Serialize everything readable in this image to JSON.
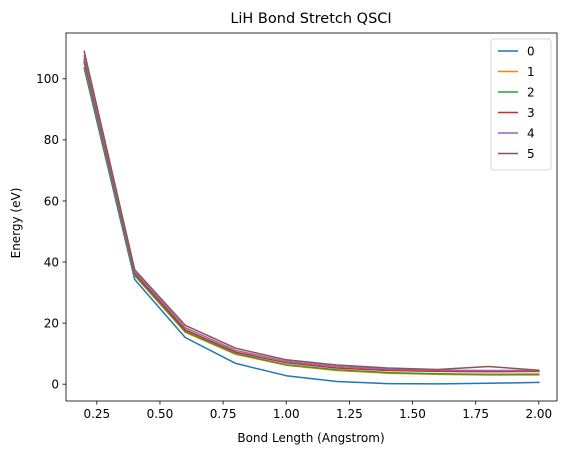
{
  "chart_data": {
    "type": "line",
    "title": "LiH Bond Stretch QSCI",
    "xlabel": "Bond Length (Angstrom)",
    "ylabel": "Energy (eV)",
    "x": [
      0.2,
      0.4,
      0.6,
      0.8,
      1.0,
      1.2,
      1.4,
      1.6,
      1.8,
      2.0
    ],
    "xlim": [
      0.128,
      2.072
    ],
    "ylim": [
      -5.5,
      115.0
    ],
    "xticks": [
      0.25,
      0.5,
      0.75,
      1.0,
      1.25,
      1.5,
      1.75,
      2.0
    ],
    "xtick_labels": [
      "0.25",
      "0.50",
      "0.75",
      "1.00",
      "1.25",
      "1.50",
      "1.75",
      "2.00"
    ],
    "yticks": [
      0,
      20,
      40,
      60,
      80,
      100
    ],
    "ytick_labels": [
      "0",
      "20",
      "40",
      "60",
      "80",
      "100"
    ],
    "legend_position": "top-right",
    "series": [
      {
        "name": "0",
        "color": "#1f77b4",
        "values": [
          103.5,
          34.3,
          15.3,
          6.8,
          2.8,
          0.9,
          0.2,
          0.1,
          0.3,
          0.6
        ]
      },
      {
        "name": "1",
        "color": "#ff7f0e",
        "values": [
          105.0,
          35.5,
          17.0,
          9.8,
          6.2,
          4.5,
          3.6,
          3.2,
          3.0,
          3.0
        ]
      },
      {
        "name": "2",
        "color": "#2ca02c",
        "values": [
          105.5,
          35.8,
          17.3,
          10.0,
          6.4,
          4.7,
          3.8,
          3.4,
          3.2,
          3.3
        ]
      },
      {
        "name": "3",
        "color": "#d62728",
        "values": [
          106.5,
          36.3,
          17.8,
          10.5,
          7.0,
          5.3,
          4.5,
          4.2,
          4.1,
          4.2
        ]
      },
      {
        "name": "4",
        "color": "#9467bd",
        "values": [
          107.5,
          36.8,
          18.5,
          11.1,
          7.5,
          5.8,
          4.9,
          4.6,
          4.5,
          4.5
        ]
      },
      {
        "name": "5",
        "color": "#8c564b",
        "values": [
          109.0,
          37.5,
          19.3,
          11.8,
          8.0,
          6.3,
          5.3,
          4.8,
          5.8,
          4.6
        ]
      }
    ]
  }
}
